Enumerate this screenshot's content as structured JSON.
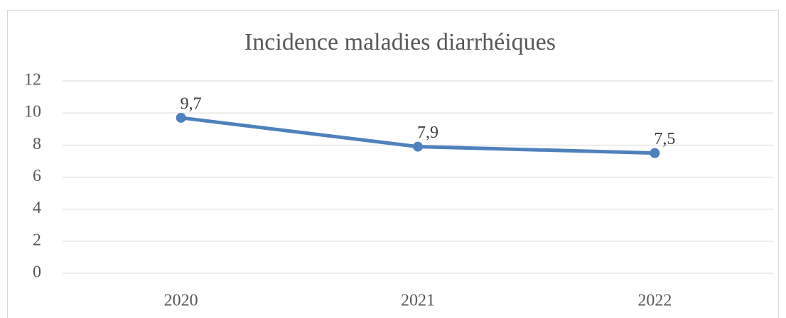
{
  "chart_data": {
    "type": "line",
    "title": "Incidence maladies diarrhéiques",
    "categories": [
      "2020",
      "2021",
      "2022"
    ],
    "series": [
      {
        "color": "#4f81bd",
        "values": [
          9.7,
          7.9,
          7.5
        ],
        "value_labels": [
          "9,7",
          "7,9",
          "7,5"
        ]
      }
    ],
    "ylim": [
      0,
      12
    ],
    "yticks": [
      0,
      2,
      4,
      6,
      8,
      10,
      12
    ],
    "grid": true
  }
}
